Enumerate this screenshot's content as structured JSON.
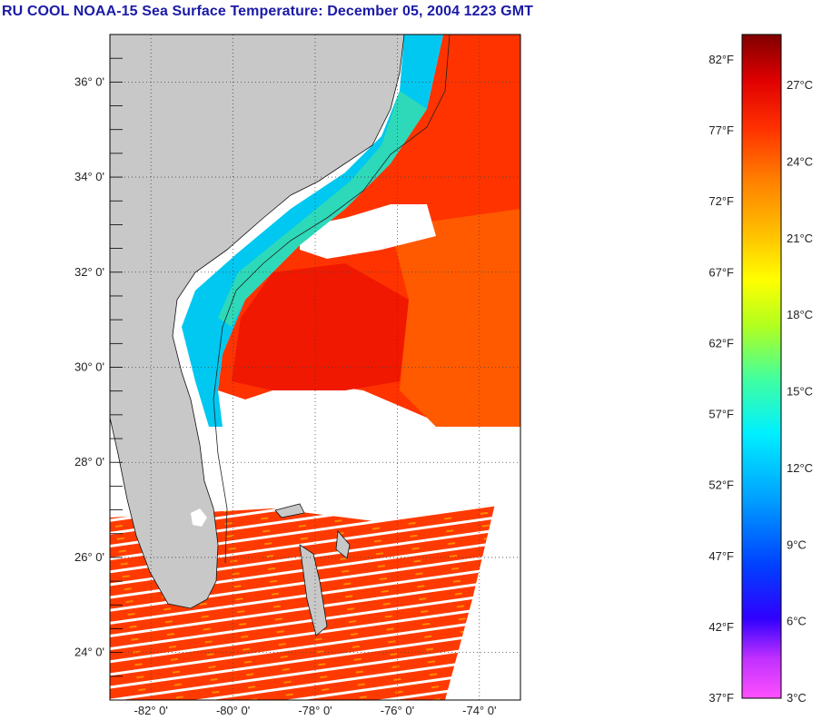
{
  "title": "RU COOL  NOAA-15  Sea Surface Temperature:  December 05, 2004 1223 GMT",
  "map": {
    "lat_labels": [
      "36° 0'",
      "34° 0'",
      "32° 0'",
      "30° 0'",
      "28° 0'",
      "26° 0'",
      "24° 0'"
    ],
    "lat_values": [
      36,
      34,
      32,
      30,
      28,
      26,
      24
    ],
    "lon_labels": [
      "-82° 0'",
      "-80° 0'",
      "-78° 0'",
      "-76° 0'",
      "-74° 0'"
    ],
    "lon_values": [
      -82,
      -80,
      -78,
      -76,
      -74
    ],
    "lat_range": [
      23,
      37
    ],
    "lon_range": [
      -83,
      -73
    ],
    "colors": {
      "land": "#c8c8c8",
      "cloud": "#ffffff",
      "warm": "#ff2a00",
      "mid": "#ff6a00",
      "cool": "#00c8ff"
    }
  },
  "colorbar": {
    "fahrenheit_labels": [
      "82°F",
      "77°F",
      "72°F",
      "67°F",
      "62°F",
      "57°F",
      "52°F",
      "47°F",
      "42°F",
      "37°F"
    ],
    "celsius_labels": [
      "27°C",
      "24°C",
      "21°C",
      "18°C",
      "15°C",
      "12°C",
      "9°C",
      "6°C",
      "3°C"
    ],
    "colors": [
      "#ff40ff",
      "#8000ff",
      "#0000ff",
      "#0060ff",
      "#00c0ff",
      "#00ffff",
      "#40ff80",
      "#c0ff00",
      "#ffff00",
      "#ffc000",
      "#ff8000",
      "#ff4000",
      "#ff0000",
      "#c00000",
      "#800000"
    ]
  }
}
